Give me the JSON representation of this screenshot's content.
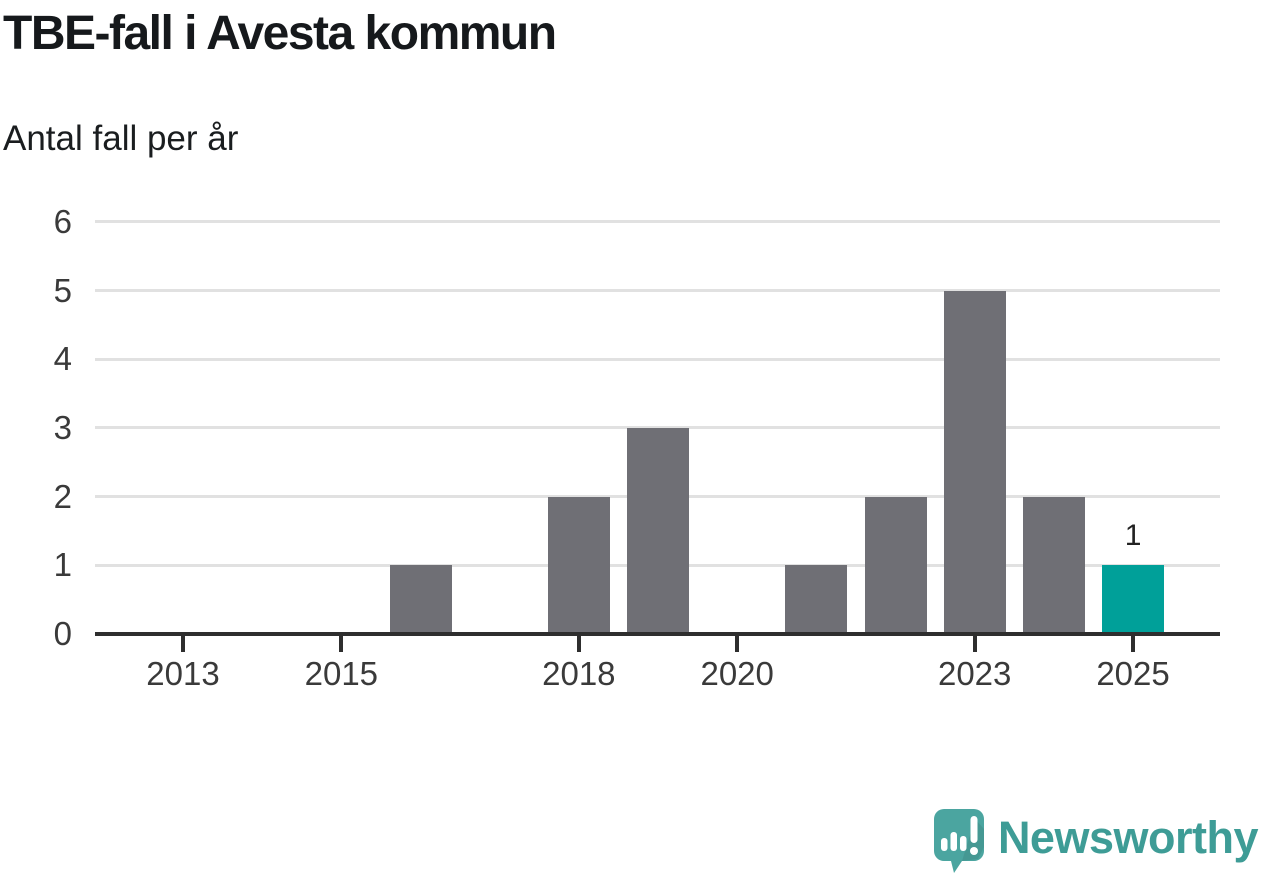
{
  "header": {
    "title": "TBE-fall i Avesta kommun",
    "subtitle": "Antal fall per år"
  },
  "chart_data": {
    "type": "bar",
    "title": "TBE-fall i Avesta kommun",
    "ylabel": "Antal fall per år",
    "xlabel": "",
    "categories": [
      "2013",
      "2014",
      "2015",
      "2016",
      "2017",
      "2018",
      "2019",
      "2020",
      "2021",
      "2022",
      "2023",
      "2024",
      "2025"
    ],
    "values": [
      0,
      0,
      0,
      1,
      0,
      2,
      3,
      0,
      1,
      2,
      5,
      2,
      1
    ],
    "ylim": [
      0,
      6
    ],
    "yticks": [
      0,
      1,
      2,
      3,
      4,
      5,
      6
    ],
    "xtick_labels": [
      "2013",
      "2015",
      "2018",
      "2020",
      "2023",
      "2025"
    ],
    "grid": true,
    "legend_position": "none",
    "bar_color": "#6F6F75",
    "highlight": {
      "category": "2025",
      "value": 1,
      "color": "#00A099",
      "data_label": "1"
    }
  },
  "colors": {
    "axis": "#2E2E2E",
    "gridline": "#E1E1E1",
    "tick_label": "#3A3A3A",
    "title_text": "#16191C"
  },
  "branding": {
    "name": "Newsworthy",
    "text_color": "#3E9C96",
    "icon": "newsworthy-speech-bubble-chart-icon",
    "icon_color": "#4BA5A0"
  }
}
